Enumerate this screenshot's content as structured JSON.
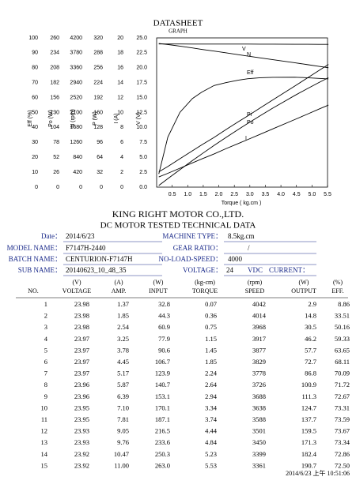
{
  "graph": {
    "title": "DATASHEET",
    "subtitle": "GRAPH",
    "axes": [
      {
        "title": "Eff (%)",
        "ticks": [
          "0",
          "10",
          "20",
          "30",
          "40",
          "50",
          "60",
          "70",
          "80",
          "90",
          "100"
        ]
      },
      {
        "title": "Po (W)",
        "ticks": [
          "0",
          "26",
          "52",
          "78",
          "104",
          "130",
          "156",
          "182",
          "208",
          "234",
          "260"
        ]
      },
      {
        "title": "N (rpm)",
        "ticks": [
          "0",
          "420",
          "840",
          "1260",
          "1680",
          "2100",
          "2520",
          "2940",
          "3360",
          "3780",
          "4200"
        ]
      },
      {
        "title": "P (W)",
        "ticks": [
          "0",
          "32",
          "64",
          "96",
          "128",
          "160",
          "192",
          "224",
          "256",
          "288",
          "320"
        ]
      },
      {
        "title": "I (A)",
        "ticks": [
          "0",
          "2",
          "4",
          "6",
          "8",
          "10",
          "12",
          "14",
          "16",
          "18",
          "20"
        ]
      },
      {
        "title": "V (V)",
        "ticks": [
          "0.0",
          "2.5",
          "5.0",
          "7.5",
          "10.0",
          "12.5",
          "15.0",
          "17.5",
          "20.0",
          "22.5",
          "25.0"
        ]
      }
    ],
    "x_ticks": [
      "0.5",
      "1.0",
      "1.5",
      "2.0",
      "2.5",
      "3.0",
      "3.5",
      "4.0",
      "4.5",
      "5.0",
      "5.5"
    ],
    "x_title": "Torque ( kg.cm )",
    "curve_labels": [
      "V",
      "N",
      "Eff",
      "Pi",
      "Po",
      "I"
    ]
  },
  "company": "KING RIGHT MOTOR CO.,LTD.",
  "doc_title": "DC MOTOR TESTED TECHNICAL DATA",
  "info": [
    [
      {
        "label": "Date：",
        "value": "2014/6/23"
      },
      {
        "label": "MACHINE TYPE：",
        "value": "8.5kg.cm"
      }
    ],
    [
      {
        "label": "MODEL NAME：",
        "value": "F7147H-2440"
      },
      {
        "label": "GEAR RATIO：",
        "value": "/"
      }
    ],
    [
      {
        "label": "BATCH NAME：",
        "value": "CENTURION-F7147H"
      },
      {
        "label": "NO-LOAD-SPEED：",
        "value": "4000"
      }
    ],
    [
      {
        "label": "SUB NAME：",
        "value": "20140623_10_48_35"
      },
      {
        "label": "VOLTAGE：",
        "value": "24",
        "unit": "VDC",
        "extra": "CURRENT："
      }
    ]
  ],
  "table": {
    "units": [
      "",
      "(V)",
      "(A)",
      "(W)",
      "(kg-cm)",
      "(rpm)",
      "(W)",
      "(%)"
    ],
    "headers": [
      "NO.",
      "VOLTAGE",
      "AMP.",
      "INPUT",
      "TORQUE",
      "SPEED",
      "OUTPUT",
      "EFF."
    ],
    "rows": [
      [
        "1",
        "23.98",
        "1.37",
        "32.8",
        "0.07",
        "4042",
        "2.9",
        "8.86"
      ],
      [
        "2",
        "23.98",
        "1.85",
        "44.3",
        "0.36",
        "4014",
        "14.8",
        "33.51"
      ],
      [
        "3",
        "23.98",
        "2.54",
        "60.9",
        "0.75",
        "3968",
        "30.5",
        "50.16"
      ],
      [
        "4",
        "23.97",
        "3.25",
        "77.9",
        "1.15",
        "3917",
        "46.2",
        "59.33"
      ],
      [
        "5",
        "23.97",
        "3.78",
        "90.6",
        "1.45",
        "3877",
        "57.7",
        "63.65"
      ],
      [
        "6",
        "23.97",
        "4.45",
        "106.7",
        "1.85",
        "3829",
        "72.7",
        "68.11"
      ],
      [
        "7",
        "23.97",
        "5.17",
        "123.9",
        "2.24",
        "3778",
        "86.8",
        "70.09"
      ],
      [
        "8",
        "23.96",
        "5.87",
        "140.7",
        "2.64",
        "3726",
        "100.9",
        "71.72"
      ],
      [
        "9",
        "23.96",
        "6.39",
        "153.1",
        "2.94",
        "3688",
        "111.3",
        "72.67"
      ],
      [
        "10",
        "23.95",
        "7.10",
        "170.1",
        "3.34",
        "3638",
        "124.7",
        "73.31"
      ],
      [
        "11",
        "23.95",
        "7.81",
        "187.1",
        "3.74",
        "3588",
        "137.7",
        "73.59"
      ],
      [
        "12",
        "23.93",
        "9.05",
        "216.5",
        "4.44",
        "3501",
        "159.5",
        "73.67"
      ],
      [
        "13",
        "23.93",
        "9.76",
        "233.6",
        "4.84",
        "3450",
        "171.3",
        "73.34"
      ],
      [
        "14",
        "23.92",
        "10.47",
        "250.3",
        "5.23",
        "3399",
        "182.4",
        "72.86"
      ],
      [
        "15",
        "23.92",
        "11.00",
        "263.0",
        "5.53",
        "3361",
        "190.7",
        "72.50"
      ]
    ]
  },
  "footer": "2014/6/23 上午 10:51:06"
}
